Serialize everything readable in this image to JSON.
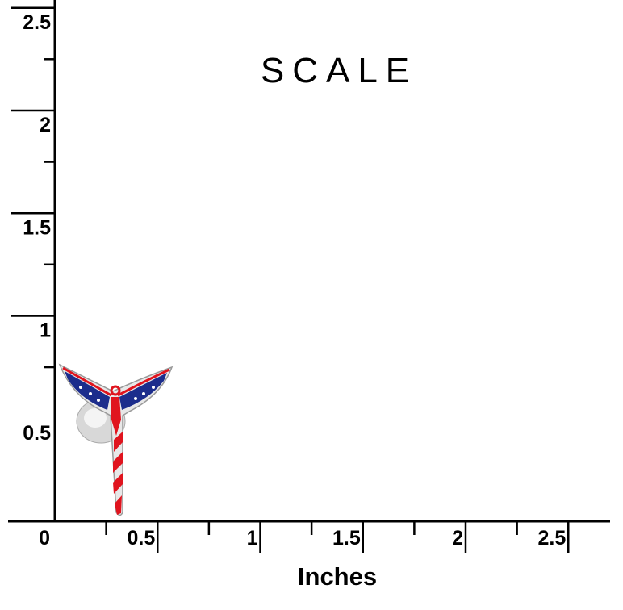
{
  "title": "SCALE",
  "x_axis": {
    "label": "Inches",
    "ticks": [
      0,
      0.5,
      1,
      1.5,
      2,
      2.5
    ]
  },
  "y_axis": {
    "ticks": [
      0.5,
      1,
      1.5,
      2,
      2.5
    ]
  }
}
